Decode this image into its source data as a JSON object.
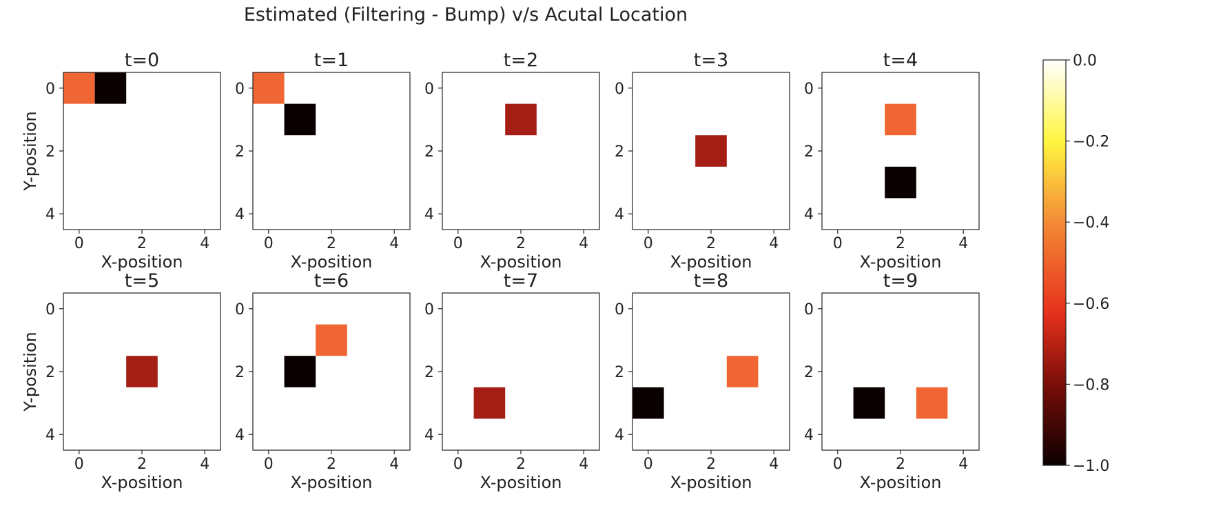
{
  "figure_title": "Estimated (Filtering - Bump) v/s Acutal Location",
  "chart_data": {
    "type": "heatmap",
    "grid_size": 5,
    "xlabel": "X-position",
    "ylabel": "Y-position",
    "xticks": [
      "0",
      "2",
      "4"
    ],
    "yticks": [
      "0",
      "2",
      "4"
    ],
    "xlim": [
      -0.5,
      4.5
    ],
    "ylim": [
      4.5,
      -0.5
    ],
    "background_value": 0.0,
    "colormap": "hot",
    "colorbar": {
      "min": -1.0,
      "max": 0.0,
      "ticks": [
        "0.0",
        "−0.2",
        "−0.4",
        "−0.6",
        "−0.8",
        "−1.0"
      ],
      "tick_values": [
        0.0,
        -0.2,
        -0.4,
        -0.6,
        -0.8,
        -1.0
      ]
    },
    "panels": [
      {
        "title": "t=0",
        "cells": [
          {
            "x": 0,
            "y": 0,
            "value": -0.4
          },
          {
            "x": 1,
            "y": 0,
            "value": -1.0
          }
        ]
      },
      {
        "title": "t=1",
        "cells": [
          {
            "x": 0,
            "y": 0,
            "value": -0.4
          },
          {
            "x": 1,
            "y": 1,
            "value": -1.0
          }
        ]
      },
      {
        "title": "t=2",
        "cells": [
          {
            "x": 2,
            "y": 1,
            "value": -0.7
          }
        ]
      },
      {
        "title": "t=3",
        "cells": [
          {
            "x": 2,
            "y": 2,
            "value": -0.7
          }
        ]
      },
      {
        "title": "t=4",
        "cells": [
          {
            "x": 2,
            "y": 1,
            "value": -0.4
          },
          {
            "x": 2,
            "y": 3,
            "value": -1.0
          }
        ]
      },
      {
        "title": "t=5",
        "cells": [
          {
            "x": 2,
            "y": 2,
            "value": -0.7
          }
        ]
      },
      {
        "title": "t=6",
        "cells": [
          {
            "x": 2,
            "y": 1,
            "value": -0.4
          },
          {
            "x": 1,
            "y": 2,
            "value": -1.0
          }
        ]
      },
      {
        "title": "t=7",
        "cells": [
          {
            "x": 1,
            "y": 3,
            "value": -0.7
          }
        ]
      },
      {
        "title": "t=8",
        "cells": [
          {
            "x": 3,
            "y": 2,
            "value": -0.4
          },
          {
            "x": 0,
            "y": 3,
            "value": -1.0
          }
        ]
      },
      {
        "title": "t=9",
        "cells": [
          {
            "x": 1,
            "y": 3,
            "value": -1.0
          },
          {
            "x": 3,
            "y": 3,
            "value": -0.4
          }
        ]
      }
    ]
  }
}
